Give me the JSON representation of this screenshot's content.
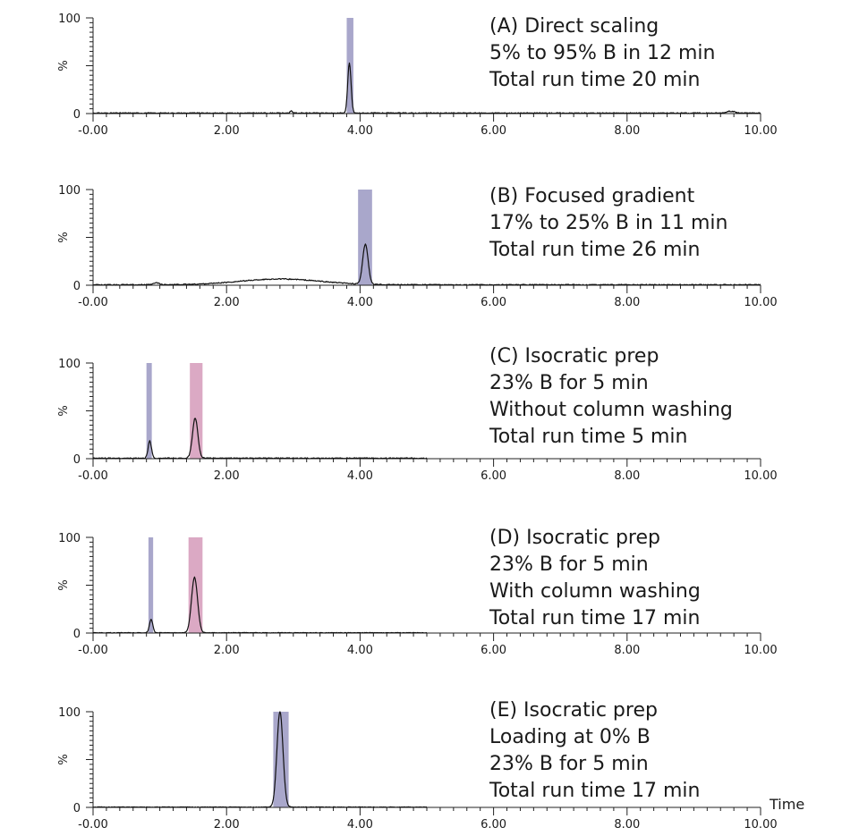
{
  "chart_data": [
    {
      "type": "line",
      "id": "A",
      "annotation": [
        "(A) Direct scaling",
        "5% to 95% B in 12 min",
        "Total run time 20 min"
      ],
      "ylabel": "%",
      "xlim": [
        0,
        10
      ],
      "ylim": [
        0,
        100
      ],
      "x_ticks": [
        "-0.00",
        "2.00",
        "4.00",
        "6.00",
        "8.00",
        "10.00"
      ],
      "y_ticks": [
        "0",
        "100"
      ],
      "x_end": 10,
      "baseline_noise": 1,
      "collection_windows": [
        {
          "start": 3.8,
          "end": 3.9,
          "color": "#a9a7cb"
        }
      ],
      "peaks": [
        {
          "rt": 3.84,
          "height": 52,
          "width": 0.025
        },
        {
          "rt": 2.97,
          "height": 2,
          "width": 0.02
        },
        {
          "rt": 9.55,
          "height": 2,
          "width": 0.06
        }
      ]
    },
    {
      "type": "line",
      "id": "B",
      "annotation": [
        "(B) Focused gradient",
        "17% to 25% B in 11 min",
        "Total run time 26 min"
      ],
      "ylabel": "%",
      "xlim": [
        0,
        10
      ],
      "ylim": [
        0,
        100
      ],
      "x_ticks": [
        "-0.00",
        "2.00",
        "4.00",
        "6.00",
        "8.00",
        "10.00"
      ],
      "y_ticks": [
        "0",
        "100"
      ],
      "x_end": 10,
      "baseline_noise": 1,
      "collection_windows": [
        {
          "start": 3.97,
          "end": 4.18,
          "color": "#a9a7cb"
        }
      ],
      "peaks": [
        {
          "rt": 4.08,
          "height": 42,
          "width": 0.04
        },
        {
          "rt": 2.8,
          "height": 6,
          "width": 0.6
        },
        {
          "rt": 0.95,
          "height": 2,
          "width": 0.04
        }
      ]
    },
    {
      "type": "line",
      "id": "C",
      "annotation": [
        "(C) Isocratic prep",
        "23% B for 5 min",
        "Without column washing",
        "Total run time 5 min"
      ],
      "ylabel": "%",
      "xlim": [
        0,
        10
      ],
      "ylim": [
        0,
        100
      ],
      "x_ticks": [
        "-0.00",
        "2.00",
        "4.00",
        "6.00",
        "8.00",
        "10.00"
      ],
      "y_ticks": [
        "0",
        "100"
      ],
      "x_end": 5,
      "baseline_noise": 1,
      "collection_windows": [
        {
          "start": 0.8,
          "end": 0.88,
          "color": "#a9a7cb"
        },
        {
          "start": 1.45,
          "end": 1.64,
          "color": "#dba9c4"
        }
      ],
      "peaks": [
        {
          "rt": 0.85,
          "height": 18,
          "width": 0.025
        },
        {
          "rt": 1.53,
          "height": 42,
          "width": 0.04
        }
      ]
    },
    {
      "type": "line",
      "id": "D",
      "annotation": [
        "(D) Isocratic prep",
        "23% B for 5 min",
        "With column washing",
        "Total run time 17 min"
      ],
      "ylabel": "%",
      "xlim": [
        0,
        10
      ],
      "ylim": [
        0,
        100
      ],
      "x_ticks": [
        "-0.00",
        "2.00",
        "4.00",
        "6.00",
        "8.00",
        "10.00"
      ],
      "y_ticks": [
        "0",
        "100"
      ],
      "x_end": 5,
      "baseline_noise": 0.6,
      "collection_windows": [
        {
          "start": 0.83,
          "end": 0.9,
          "color": "#a9a7cb"
        },
        {
          "start": 1.43,
          "end": 1.64,
          "color": "#dba9c4"
        }
      ],
      "peaks": [
        {
          "rt": 0.87,
          "height": 14,
          "width": 0.025
        },
        {
          "rt": 1.52,
          "height": 58,
          "width": 0.045
        }
      ]
    },
    {
      "type": "line",
      "id": "E",
      "annotation": [
        "(E) Isocratic prep",
        "Loading at 0% B",
        "23% B for 5 min",
        "Total run time 17 min"
      ],
      "ylabel": "%",
      "xlabel": "Time",
      "xlim": [
        0,
        10
      ],
      "ylim": [
        0,
        100
      ],
      "x_ticks": [
        "-0.00",
        "2.00",
        "4.00",
        "6.00",
        "8.00",
        "10.00"
      ],
      "y_ticks": [
        "0",
        "100"
      ],
      "x_end": 5,
      "baseline_noise": 0.6,
      "collection_windows": [
        {
          "start": 2.7,
          "end": 2.93,
          "color": "#a9a7cb"
        }
      ],
      "peaks": [
        {
          "rt": 2.8,
          "height": 100,
          "width": 0.045
        }
      ]
    }
  ]
}
